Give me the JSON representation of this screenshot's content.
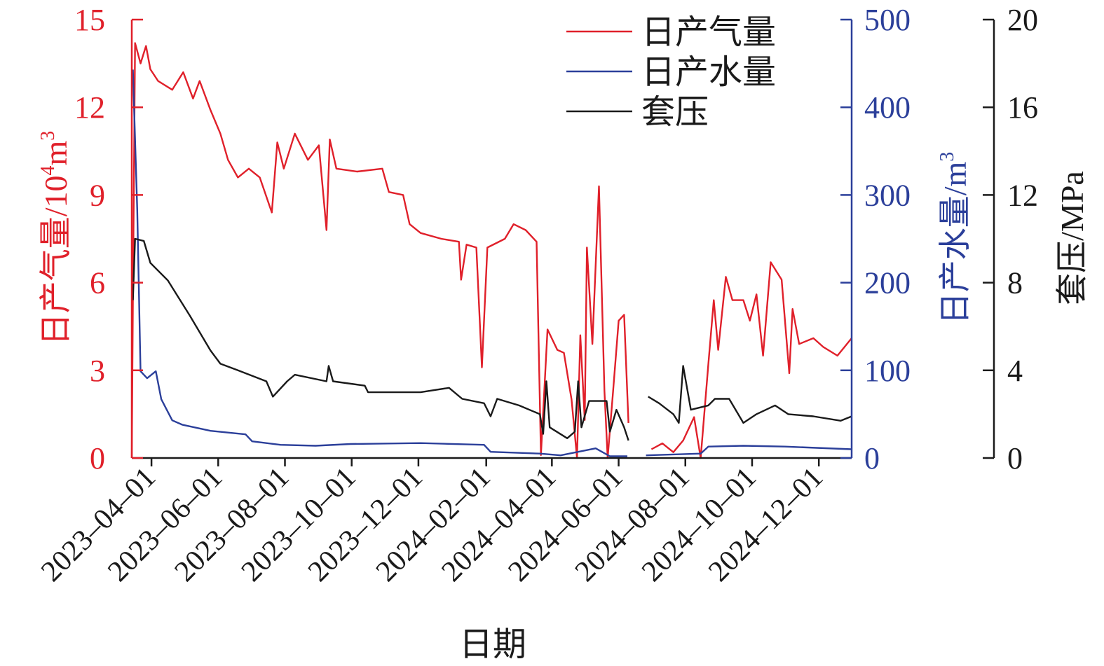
{
  "chart_data": {
    "type": "line",
    "title": "",
    "xlabel": "日期",
    "xlim": [
      "2023-03-14",
      "2024-12-31"
    ],
    "x_ticks": [
      "2023-04-01",
      "2023-06-01",
      "2023-08-01",
      "2023-10-01",
      "2023-12-01",
      "2024-02-01",
      "2024-04-01",
      "2024-06-01",
      "2024-08-01",
      "2024-10-01",
      "2024-12-01"
    ],
    "axes": {
      "gas": {
        "label": "日产气量/10⁴m³",
        "label_main": "日产气量/10",
        "label_sup": "4",
        "label_unit": "m",
        "label_sup2": "3",
        "ylim": [
          0,
          15
        ],
        "ticks": [
          0,
          3,
          6,
          9,
          12,
          15
        ],
        "color": "#e0202a",
        "side": "left"
      },
      "water": {
        "label": "日产水量/m³",
        "label_main": "日产水量/m",
        "label_sup": "3",
        "ylim": [
          0,
          500
        ],
        "ticks": [
          0,
          100,
          200,
          300,
          400,
          500
        ],
        "color": "#2b3f9a",
        "side": "right"
      },
      "pressure": {
        "label": "套压/MPa",
        "ylim": [
          0,
          20
        ],
        "ticks": [
          0,
          4,
          8,
          12,
          16,
          20
        ],
        "color": "#1a1a1a",
        "side": "far-right"
      }
    },
    "grid": false,
    "legend": {
      "placement": "top-right"
    },
    "series": [
      {
        "name": "日产气量",
        "axis": "gas",
        "color": "#e0202a",
        "points": [
          [
            "2023-03-14",
            0
          ],
          [
            "2023-03-15",
            5.4
          ],
          [
            "2023-03-17",
            14.2
          ],
          [
            "2023-03-22",
            13.5
          ],
          [
            "2023-03-27",
            14.1
          ],
          [
            "2023-03-31",
            13.3
          ],
          [
            "2023-04-07",
            12.9
          ],
          [
            "2023-04-20",
            12.6
          ],
          [
            "2023-04-30",
            13.2
          ],
          [
            "2023-05-09",
            12.3
          ],
          [
            "2023-05-15",
            12.9
          ],
          [
            "2023-05-25",
            11.9
          ],
          [
            "2023-06-03",
            11.1
          ],
          [
            "2023-06-10",
            10.2
          ],
          [
            "2023-06-19",
            9.6
          ],
          [
            "2023-06-29",
            9.9
          ],
          [
            "2023-07-09",
            9.6
          ],
          [
            "2023-07-20",
            8.4
          ],
          [
            "2023-07-25",
            10.8
          ],
          [
            "2023-07-31",
            9.9
          ],
          [
            "2023-08-10",
            11.1
          ],
          [
            "2023-08-22",
            10.2
          ],
          [
            "2023-09-01",
            10.7
          ],
          [
            "2023-09-08",
            7.8
          ],
          [
            "2023-09-11",
            10.9
          ],
          [
            "2023-09-17",
            9.9
          ],
          [
            "2023-10-06",
            9.8
          ],
          [
            "2023-10-29",
            9.9
          ],
          [
            "2023-11-04",
            9.1
          ],
          [
            "2023-11-17",
            9.0
          ],
          [
            "2023-11-23",
            8.0
          ],
          [
            "2023-12-03",
            7.7
          ],
          [
            "2023-12-22",
            7.5
          ],
          [
            "2024-01-07",
            7.4
          ],
          [
            "2024-01-09",
            6.1
          ],
          [
            "2024-01-14",
            7.3
          ],
          [
            "2024-01-23",
            7.2
          ],
          [
            "2024-01-28",
            3.1
          ],
          [
            "2024-02-02",
            7.2
          ],
          [
            "2024-02-18",
            7.5
          ],
          [
            "2024-02-26",
            8.0
          ],
          [
            "2024-03-08",
            7.8
          ],
          [
            "2024-03-18",
            7.4
          ],
          [
            "2024-03-22",
            0.1
          ],
          [
            "2024-03-28",
            4.4
          ],
          [
            "2024-04-06",
            3.7
          ],
          [
            "2024-04-12",
            3.6
          ],
          [
            "2024-04-19",
            2.0
          ],
          [
            "2024-04-24",
            0
          ],
          [
            "2024-04-27",
            4.2
          ],
          [
            "2024-05-01",
            1.3
          ],
          [
            "2024-05-03",
            7.2
          ],
          [
            "2024-05-08",
            3.9
          ],
          [
            "2024-05-11",
            6.6
          ],
          [
            "2024-05-14",
            9.3
          ],
          [
            "2024-05-19",
            2.3
          ],
          [
            "2024-05-22",
            0
          ],
          [
            "2024-05-27",
            2.3
          ],
          [
            "2024-06-01",
            4.7
          ],
          [
            "2024-06-06",
            4.9
          ],
          [
            "2024-06-10",
            1.2
          ],
          null,
          [
            "2024-07-01",
            0.3
          ],
          [
            "2024-07-11",
            0.5
          ],
          [
            "2024-07-21",
            0.2
          ],
          [
            "2024-07-30",
            0.6
          ],
          [
            "2024-08-09",
            1.4
          ],
          [
            "2024-08-15",
            0
          ],
          [
            "2024-08-22",
            3.2
          ],
          [
            "2024-08-27",
            5.4
          ],
          [
            "2024-08-31",
            3.7
          ],
          [
            "2024-09-07",
            6.2
          ],
          [
            "2024-09-13",
            5.4
          ],
          [
            "2024-09-23",
            5.4
          ],
          [
            "2024-09-29",
            4.7
          ],
          [
            "2024-10-05",
            5.6
          ],
          [
            "2024-10-11",
            3.5
          ],
          [
            "2024-10-18",
            6.7
          ],
          [
            "2024-10-28",
            6.1
          ],
          [
            "2024-11-04",
            2.9
          ],
          [
            "2024-11-07",
            5.1
          ],
          [
            "2024-11-13",
            3.9
          ],
          [
            "2024-11-26",
            4.1
          ],
          [
            "2024-12-05",
            3.8
          ],
          [
            "2024-12-18",
            3.5
          ],
          [
            "2024-12-31",
            4.1
          ]
        ]
      },
      {
        "name": "日产水量",
        "axis": "water",
        "color": "#2b3f9a",
        "points": [
          [
            "2023-03-15",
            443
          ],
          [
            "2023-03-19",
            283
          ],
          [
            "2023-03-22",
            99
          ],
          [
            "2023-03-28",
            91
          ],
          [
            "2023-04-05",
            99
          ],
          [
            "2023-04-10",
            67
          ],
          [
            "2023-04-20",
            43
          ],
          [
            "2023-04-29",
            38
          ],
          [
            "2023-05-25",
            31
          ],
          [
            "2023-06-26",
            27
          ],
          [
            "2023-07-02",
            19
          ],
          [
            "2023-07-28",
            15
          ],
          [
            "2023-08-29",
            14
          ],
          [
            "2023-09-30",
            16
          ],
          [
            "2023-12-03",
            17
          ],
          [
            "2024-01-30",
            15
          ],
          [
            "2024-02-05",
            7
          ],
          [
            "2024-03-21",
            5
          ],
          [
            "2024-04-09",
            3
          ],
          [
            "2024-05-11",
            11
          ],
          [
            "2024-05-24",
            2
          ],
          [
            "2024-06-09",
            2
          ],
          null,
          [
            "2024-06-26",
            3
          ],
          [
            "2024-08-15",
            5
          ],
          [
            "2024-08-22",
            13
          ],
          [
            "2024-09-23",
            14
          ],
          [
            "2024-10-31",
            13
          ],
          [
            "2024-12-31",
            10
          ]
        ]
      },
      {
        "name": "套压",
        "axis": "pressure",
        "color": "#1a1a1a",
        "points": [
          [
            "2023-03-15",
            7.2
          ],
          [
            "2023-03-17",
            10.0
          ],
          [
            "2023-03-25",
            9.9
          ],
          [
            "2023-03-31",
            8.9
          ],
          [
            "2023-04-16",
            8.1
          ],
          [
            "2023-05-06",
            6.5
          ],
          [
            "2023-05-25",
            4.9
          ],
          [
            "2023-06-03",
            4.3
          ],
          [
            "2023-06-19",
            4.0
          ],
          [
            "2023-07-15",
            3.5
          ],
          [
            "2023-07-21",
            2.8
          ],
          [
            "2023-08-03",
            3.5
          ],
          [
            "2023-08-10",
            3.8
          ],
          [
            "2023-09-08",
            3.5
          ],
          [
            "2023-09-10",
            4.2
          ],
          [
            "2023-09-14",
            3.5
          ],
          [
            "2023-10-13",
            3.3
          ],
          [
            "2023-10-16",
            3.0
          ],
          [
            "2023-12-03",
            3.0
          ],
          [
            "2023-12-29",
            3.2
          ],
          [
            "2024-01-10",
            2.7
          ],
          [
            "2024-01-30",
            2.5
          ],
          [
            "2024-02-05",
            1.9
          ],
          [
            "2024-02-11",
            2.7
          ],
          [
            "2024-03-02",
            2.4
          ],
          [
            "2024-03-21",
            2.0
          ],
          [
            "2024-03-24",
            1.1
          ],
          [
            "2024-03-27",
            3.5
          ],
          [
            "2024-03-30",
            1.4
          ],
          [
            "2024-04-15",
            0.9
          ],
          [
            "2024-04-22",
            1.2
          ],
          [
            "2024-04-25",
            3.5
          ],
          [
            "2024-04-28",
            1.4
          ],
          [
            "2024-05-05",
            2.6
          ],
          [
            "2024-05-21",
            2.6
          ],
          [
            "2024-05-24",
            1.2
          ],
          [
            "2024-05-30",
            2.2
          ],
          [
            "2024-06-06",
            1.4
          ],
          [
            "2024-06-10",
            0.8
          ],
          null,
          [
            "2024-06-28",
            2.8
          ],
          [
            "2024-07-08",
            2.5
          ],
          [
            "2024-07-21",
            2.0
          ],
          [
            "2024-07-26",
            1.6
          ],
          [
            "2024-07-30",
            4.2
          ],
          [
            "2024-08-06",
            2.2
          ],
          [
            "2024-08-22",
            2.4
          ],
          [
            "2024-08-28",
            2.7
          ],
          [
            "2024-09-10",
            2.7
          ],
          [
            "2024-09-23",
            1.6
          ],
          [
            "2024-10-05",
            2.0
          ],
          [
            "2024-10-22",
            2.4
          ],
          [
            "2024-11-03",
            2.0
          ],
          [
            "2024-11-26",
            1.9
          ],
          [
            "2024-12-21",
            1.7
          ],
          [
            "2024-12-31",
            1.9
          ]
        ]
      }
    ]
  }
}
